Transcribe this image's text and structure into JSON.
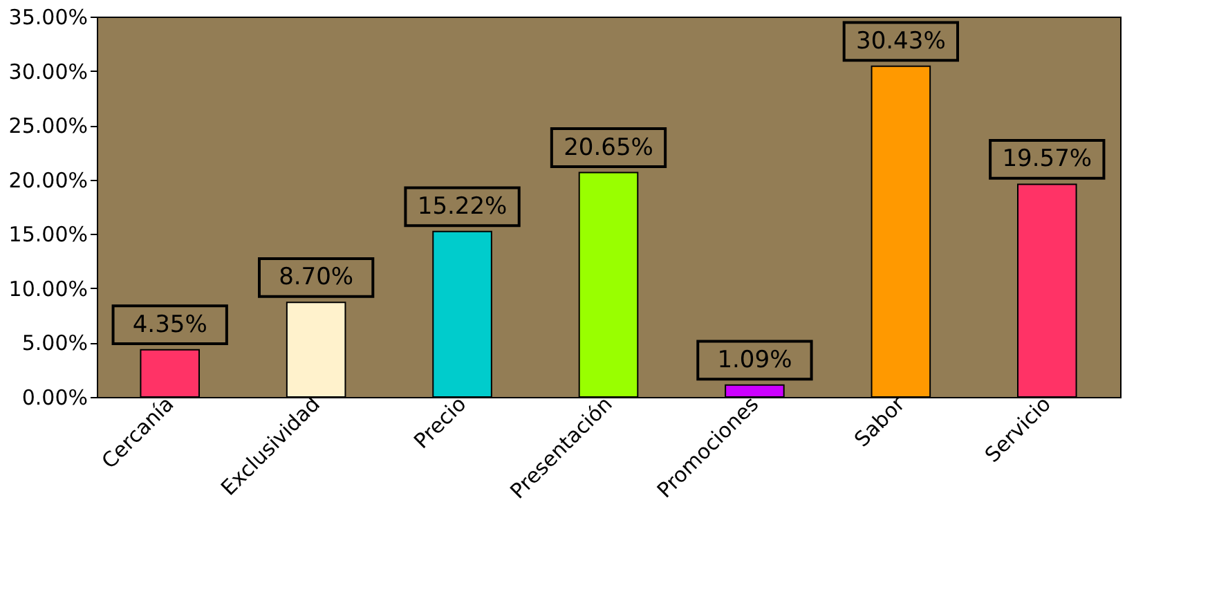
{
  "chart_data": {
    "type": "bar",
    "categories": [
      "Cercanía",
      "Exclusividad",
      "Precio",
      "Presentación",
      "Promociones",
      "Sabor",
      "Servicio"
    ],
    "values": [
      4.35,
      8.7,
      15.22,
      20.65,
      1.09,
      30.43,
      19.57
    ],
    "colors": [
      "#ff3366",
      "#fff2cc",
      "#00cccc",
      "#99ff00",
      "#cc00ff",
      "#ff9900",
      "#ff3366"
    ],
    "value_labels": [
      "4.35%",
      "8.70%",
      "15.22%",
      "20.65%",
      "1.09%",
      "30.43%",
      "19.57%"
    ],
    "ylim": [
      0,
      35
    ],
    "yticks": [
      {
        "value": 0,
        "label": "0.00%"
      },
      {
        "value": 5,
        "label": "5.00%"
      },
      {
        "value": 10,
        "label": "10.00%"
      },
      {
        "value": 15,
        "label": "15.00%"
      },
      {
        "value": 20,
        "label": "20.00%"
      },
      {
        "value": 25,
        "label": "25.00%"
      },
      {
        "value": 30,
        "label": "30.00%"
      },
      {
        "value": 35,
        "label": "35.00%"
      }
    ],
    "grid": false,
    "legend": false
  }
}
